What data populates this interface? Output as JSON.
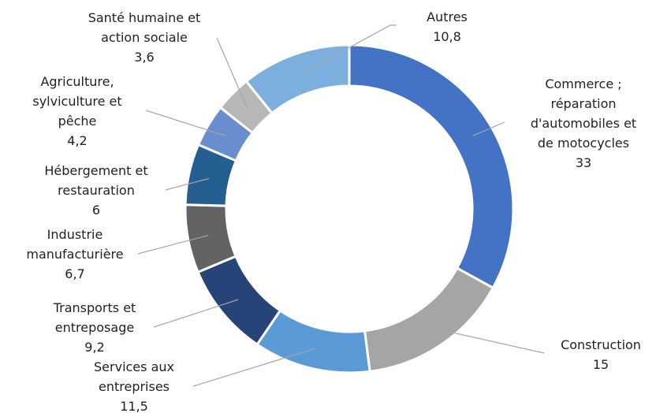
{
  "chart_data": {
    "type": "donut",
    "categories": [
      "Commerce ;\nréparation\nd'automobiles et\nde motocycles",
      "Construction",
      "Services aux\nentreprises",
      "Transports et\nentreposage",
      "Industrie\nmanufacturière",
      "Hébergement et\nrestauration",
      "Agriculture,\nsylviculture et\npêche",
      "Santé humaine et\naction sociale",
      "Autres"
    ],
    "values": [
      33,
      15,
      11.5,
      9.2,
      6.7,
      6,
      4.2,
      3.6,
      10.8
    ],
    "value_labels": [
      "33",
      "15",
      "11,5",
      "9,2",
      "6,7",
      "6",
      "4,2",
      "3,6",
      "10,8"
    ],
    "colors": [
      "#4472c4",
      "#a5a5a5",
      "#5b9bd5",
      "#264478",
      "#636363",
      "#255e91",
      "#698ed0",
      "#b7b7b7",
      "#7cafdd"
    ]
  }
}
